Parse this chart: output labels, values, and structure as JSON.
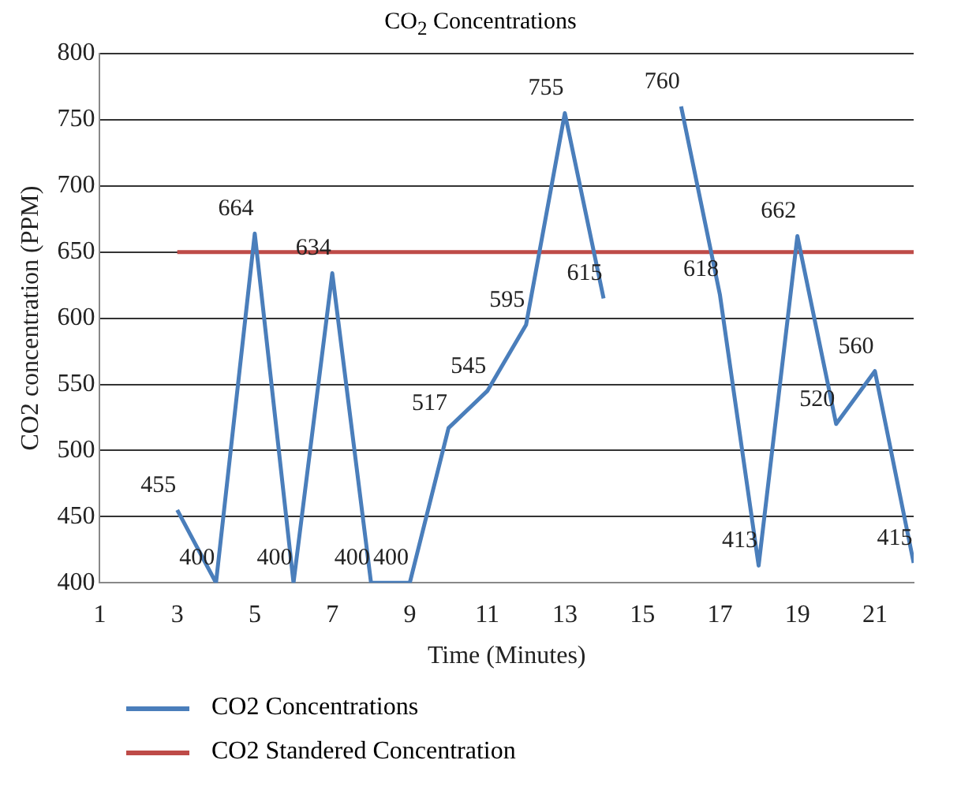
{
  "chart_data": {
    "type": "line",
    "title": "CO$_{2}$ Concentrations",
    "xlabel": "Time (Minutes)",
    "ylabel": "CO2 concentration (PPM)",
    "xlim": [
      1,
      22
    ],
    "xticks": [
      1,
      3,
      5,
      7,
      9,
      11,
      13,
      15,
      17,
      19,
      21
    ],
    "ylim": [
      400,
      800
    ],
    "yticks": [
      400,
      450,
      500,
      550,
      600,
      650,
      700,
      750,
      800
    ],
    "grid": "y",
    "legend": "bottom",
    "marker": "none",
    "line_style": "solid",
    "series": [
      {
        "name": "CO2 Concentrations",
        "color": "#4a7ebb",
        "x": [
          3,
          4,
          5,
          6,
          7,
          8,
          9,
          10,
          11,
          12,
          13,
          14,
          15,
          16,
          17,
          18,
          19,
          20,
          21,
          22
        ],
        "values": [
          455,
          400,
          664,
          400,
          634,
          400,
          400,
          517,
          545,
          595,
          755,
          615,
          null,
          760,
          618,
          413,
          662,
          520,
          560,
          415
        ],
        "value_labels": [
          "455",
          "400",
          "664",
          "400",
          "634",
          "400",
          "400",
          "517",
          "545",
          "595",
          "755",
          "615",
          null,
          "760",
          "618",
          "413",
          "662",
          "520",
          "560",
          "415"
        ]
      },
      {
        "name": "CO2 Standered Concentration",
        "color": "#be4b48",
        "x": [
          3,
          22
        ],
        "values": [
          650,
          650
        ]
      }
    ]
  }
}
